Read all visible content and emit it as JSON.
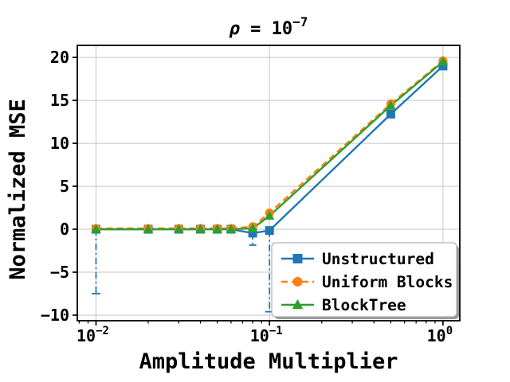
{
  "chart_data": {
    "type": "line",
    "title": "ρ = 10⁻⁷",
    "title_parts": {
      "rho": "ρ",
      "mid": " = 10",
      "exp": "−7"
    },
    "xlabel": "Amplitude Multiplier",
    "ylabel": "Normalized MSE",
    "x_scale": "log",
    "xlim": [
      0.0078,
      1.25
    ],
    "ylim": [
      -10.65,
      21.4
    ],
    "grid": true,
    "grid_color": "#c6c6c6",
    "legend_position": "lower right",
    "x_ticks": [
      {
        "value": 0.01,
        "base": "10",
        "exp": "−2"
      },
      {
        "value": 0.1,
        "base": "10",
        "exp": "−1"
      },
      {
        "value": 1.0,
        "base": "10",
        "exp": "0"
      }
    ],
    "y_ticks": [
      {
        "value": -10,
        "label": "−10"
      },
      {
        "value": -5,
        "label": "−5"
      },
      {
        "value": 0,
        "label": "0"
      },
      {
        "value": 5,
        "label": "5"
      },
      {
        "value": 10,
        "label": "10"
      },
      {
        "value": 15,
        "label": "15"
      },
      {
        "value": 20,
        "label": "20"
      }
    ],
    "x": [
      0.01,
      0.02,
      0.03,
      0.04,
      0.05,
      0.06,
      0.08,
      0.1,
      0.5,
      1.0
    ],
    "series": [
      {
        "name": "Unstructured",
        "color": "#1f77b4",
        "marker": "square",
        "linestyle": "solid",
        "err_style": "dashdot",
        "y": [
          0,
          0,
          0,
          0,
          0,
          0,
          -0.45,
          -0.15,
          13.4,
          19.0
        ],
        "err_lo": [
          7.5,
          0,
          0,
          0,
          0,
          0,
          1.4,
          9.45,
          0,
          0
        ],
        "err_hi": [
          0,
          0,
          0,
          0,
          0,
          0,
          0,
          0,
          0,
          0
        ]
      },
      {
        "name": "Uniform Blocks",
        "color": "#ff7f0e",
        "marker": "circle",
        "linestyle": "dashed",
        "err_style": "solid",
        "y": [
          0.1,
          0.1,
          0.1,
          0.1,
          0.1,
          0.1,
          0.3,
          1.9,
          14.6,
          19.6
        ],
        "err_lo": [
          0,
          0,
          0,
          0,
          0,
          0,
          0,
          0,
          0,
          0
        ],
        "err_hi": [
          0,
          0,
          0,
          0,
          0,
          0,
          0,
          0,
          0,
          0
        ]
      },
      {
        "name": "BlockTree",
        "color": "#2ca02c",
        "marker": "triangle",
        "linestyle": "solid",
        "err_style": "solid",
        "y": [
          0,
          0,
          0,
          0,
          0,
          0,
          0.1,
          1.55,
          14.4,
          19.5
        ],
        "err_lo": [
          0,
          0,
          0,
          0,
          0,
          0,
          0.3,
          0.3,
          0.4,
          0.35
        ],
        "err_hi": [
          0,
          0,
          0,
          0,
          0,
          0,
          0.3,
          0.3,
          0.4,
          0.35
        ]
      }
    ],
    "legend": {
      "entries": [
        "Unstructured",
        "Uniform Blocks",
        "BlockTree"
      ]
    }
  }
}
